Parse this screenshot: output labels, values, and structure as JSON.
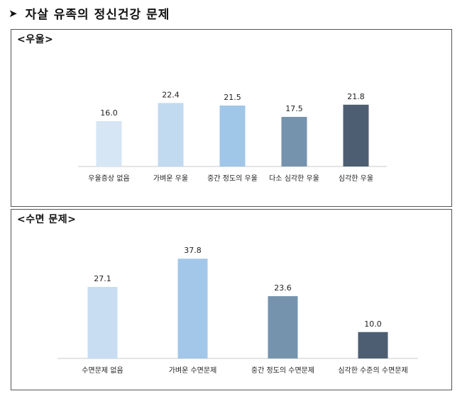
{
  "page": {
    "title": "자살 유족의 정신건강 문제",
    "arrow_icon": "arrowhead-right-icon"
  },
  "chart_data": [
    {
      "type": "bar",
      "title": "<우울>",
      "categories": [
        "우울증상 없음",
        "가벼운 우울",
        "중간 정도의 우울",
        "다소 심각한 우울",
        "심각한 우울"
      ],
      "values": [
        16.0,
        22.4,
        21.5,
        17.5,
        21.8
      ],
      "value_labels": [
        "16.0",
        "22.4",
        "21.5",
        "17.5",
        "21.8"
      ],
      "colors": [
        "#d6e6f4",
        "#c2daf0",
        "#a0c6e8",
        "#7593ad",
        "#4d5e72"
      ],
      "ylim": [
        0,
        25
      ],
      "grid": false,
      "legend": "none"
    },
    {
      "type": "bar",
      "title": "<수면 문제>",
      "categories": [
        "수면문제 없음",
        "가벼운 수면문제",
        "중간 정도의 수면문제",
        "심각한 수준의 수면문제"
      ],
      "values": [
        27.1,
        37.8,
        23.6,
        10.0
      ],
      "value_labels": [
        "27.1",
        "37.8",
        "23.6",
        "10.0"
      ],
      "colors": [
        "#c8ddf1",
        "#a2c7e9",
        "#7593ad",
        "#4d5e72"
      ],
      "ylim": [
        0,
        40
      ],
      "grid": false,
      "legend": "none"
    }
  ]
}
